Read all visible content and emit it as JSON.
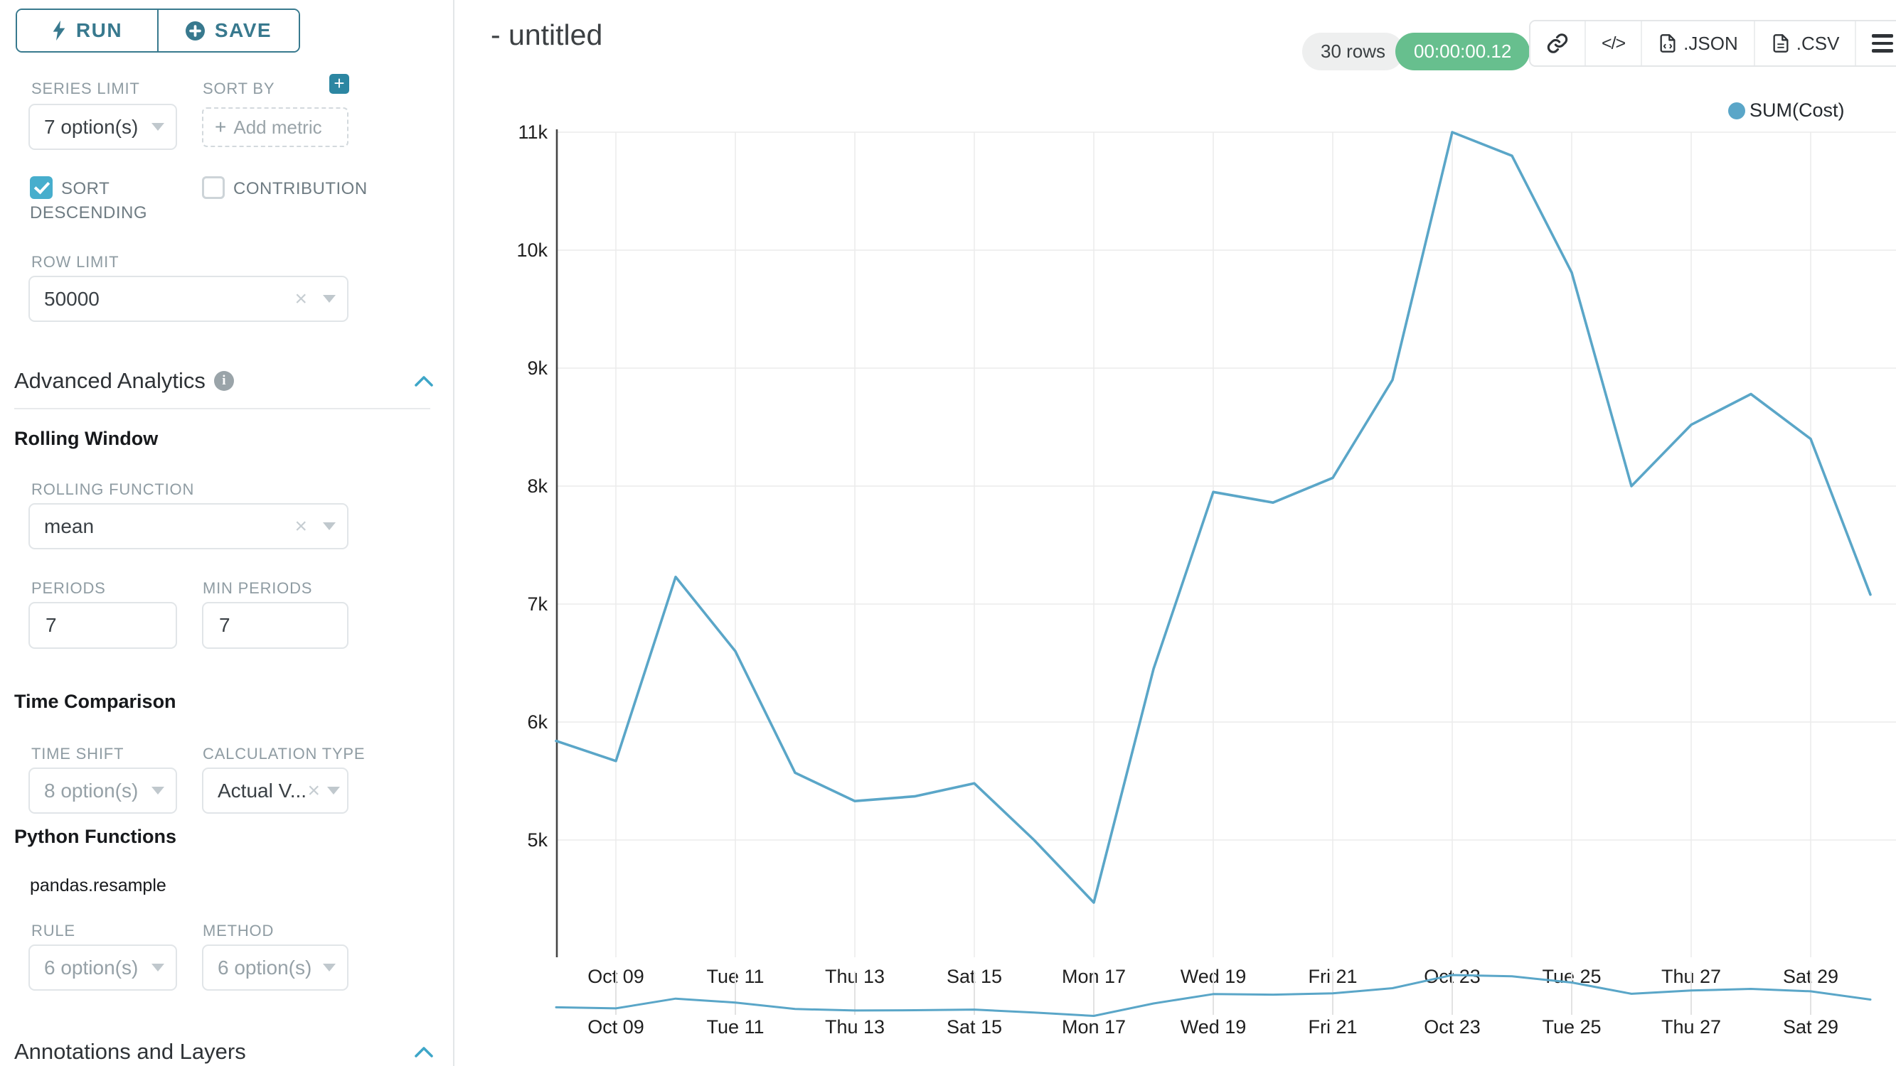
{
  "colors": {
    "accent_teal": "#38798E",
    "plus_button_teal": "#2C86A2",
    "checkbox_blue": "#47AECD",
    "chevron_blue": "#3EA6C8",
    "success_green": "#67BF8E",
    "line_blue": "#5AA6C8"
  },
  "icons": [
    "lightning-icon",
    "plus-circle-icon",
    "plus-icon",
    "clear-x-icon",
    "caret-down-icon",
    "info-icon",
    "chevron-up-icon",
    "link-icon",
    "code-icon",
    "json-file-icon",
    "csv-file-icon",
    "menu-icon"
  ],
  "sidebar": {
    "run_label": "RUN",
    "save_label": "SAVE",
    "series_limit": {
      "label": "SERIES LIMIT",
      "value": "7 option(s)"
    },
    "sort_by": {
      "label": "SORT BY",
      "placeholder": "Add metric"
    },
    "sort_descending": {
      "label": "SORT DESCENDING",
      "checked": true
    },
    "contribution": {
      "label": "CONTRIBUTION",
      "checked": false
    },
    "row_limit": {
      "label": "ROW LIMIT",
      "value": "50000"
    },
    "advanced_analytics_title": "Advanced Analytics",
    "rolling_window": {
      "title": "Rolling Window",
      "rolling_function": {
        "label": "ROLLING FUNCTION",
        "value": "mean"
      },
      "periods": {
        "label": "PERIODS",
        "value": "7"
      },
      "min_periods": {
        "label": "MIN PERIODS",
        "value": "7"
      }
    },
    "time_comparison": {
      "title": "Time Comparison",
      "time_shift": {
        "label": "TIME SHIFT",
        "value": "8 option(s)"
      },
      "calculation_type": {
        "label": "CALCULATION TYPE",
        "value": "Actual V..."
      }
    },
    "python_functions": {
      "title": "Python Functions",
      "subtitle": "pandas.resample",
      "rule": {
        "label": "RULE",
        "value": "6 option(s)"
      },
      "method": {
        "label": "METHOD",
        "value": "6 option(s)"
      }
    },
    "annotations_title": "Annotations and Layers"
  },
  "header": {
    "title": "- untitled",
    "rows_badge": "30 rows",
    "duration_badge": "00:00:00.12",
    "json_label": ".JSON",
    "csv_label": ".CSV",
    "code_glyph": "</>"
  },
  "chart_data": {
    "type": "line",
    "title": "SUM(Cost)",
    "legend_position": "top-right",
    "grid": true,
    "context_preview": true,
    "x": [
      "Oct 08",
      "Oct 09",
      "Oct 10",
      "Oct 11",
      "Oct 12",
      "Oct 13",
      "Oct 14",
      "Oct 15",
      "Oct 16",
      "Oct 17",
      "Oct 18",
      "Oct 19",
      "Oct 20",
      "Oct 21",
      "Oct 22",
      "Oct 23",
      "Oct 24",
      "Oct 25",
      "Oct 26",
      "Oct 27",
      "Oct 28",
      "Oct 29",
      "Oct 30"
    ],
    "series": [
      {
        "name": "SUM(Cost)",
        "color": "#5AA6C8",
        "values": [
          5840,
          5670,
          7230,
          6600,
          5570,
          5330,
          5370,
          5480,
          5000,
          4470,
          6450,
          7950,
          7860,
          8070,
          8900,
          11000,
          10800,
          9810,
          8000,
          8520,
          8780,
          8400,
          7080
        ]
      }
    ],
    "x_tick_labels": [
      "Oct 09",
      "Tue 11",
      "Thu 13",
      "Sat 15",
      "Mon 17",
      "Wed 19",
      "Fri 21",
      "Oct 23",
      "Tue 25",
      "Thu 27",
      "Sat 29"
    ],
    "x_tick_indexes": [
      1,
      3,
      5,
      7,
      9,
      11,
      13,
      15,
      17,
      19,
      21
    ],
    "y_tick_labels": [
      "5k",
      "6k",
      "7k",
      "8k",
      "9k",
      "10k",
      "11k"
    ],
    "y_tick_values": [
      5000,
      6000,
      7000,
      8000,
      9000,
      10000,
      11000
    ],
    "ylim": [
      4020,
      11000
    ]
  }
}
